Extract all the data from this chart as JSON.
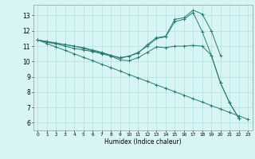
{
  "xlabel": "Humidex (Indice chaleur)",
  "background_color": "#d8f5f5",
  "grid_color": "#b0e0e0",
  "line_color": "#2a7a70",
  "xlim": [
    -0.5,
    23.5
  ],
  "ylim": [
    5.5,
    13.7
  ],
  "xticks": [
    0,
    1,
    2,
    3,
    4,
    5,
    6,
    7,
    8,
    9,
    10,
    11,
    12,
    13,
    14,
    15,
    16,
    17,
    18,
    19,
    20,
    21,
    22,
    23
  ],
  "yticks": [
    6,
    7,
    8,
    9,
    10,
    11,
    12,
    13
  ],
  "series": [
    {
      "x": [
        0,
        1,
        2,
        3,
        4,
        5,
        6,
        7,
        8,
        9,
        10,
        11,
        12,
        13,
        14,
        15,
        16,
        17,
        18,
        19,
        20
      ],
      "y": [
        11.4,
        11.3,
        11.2,
        11.1,
        11.0,
        10.9,
        10.75,
        10.6,
        10.4,
        10.2,
        10.35,
        10.55,
        11.1,
        11.55,
        11.65,
        12.75,
        12.85,
        13.35,
        13.1,
        12.0,
        10.4
      ]
    },
    {
      "x": [
        0,
        1,
        2,
        3,
        4,
        5,
        6,
        7,
        8,
        9,
        10,
        11,
        12,
        13,
        14,
        15,
        16,
        17,
        18,
        19,
        20,
        21,
        22
      ],
      "y": [
        11.4,
        11.3,
        11.2,
        11.1,
        11.0,
        10.85,
        10.7,
        10.55,
        10.4,
        10.25,
        10.35,
        10.6,
        11.0,
        11.5,
        11.6,
        12.6,
        12.75,
        13.2,
        11.95,
        10.4,
        8.6,
        7.3,
        6.3
      ]
    },
    {
      "x": [
        0,
        1,
        2,
        3,
        4,
        5,
        6,
        7,
        8,
        9,
        10,
        11,
        12,
        13,
        14,
        15,
        16,
        17,
        18,
        19,
        20,
        21,
        22
      ],
      "y": [
        11.4,
        11.25,
        11.15,
        11.0,
        10.85,
        10.75,
        10.65,
        10.5,
        10.35,
        10.1,
        10.05,
        10.25,
        10.6,
        10.95,
        10.9,
        11.0,
        11.0,
        11.05,
        11.0,
        10.4,
        8.6,
        7.3,
        6.3
      ]
    },
    {
      "x": [
        0,
        1,
        2,
        3,
        4,
        5,
        6,
        7,
        8,
        9,
        10,
        11,
        12,
        13,
        14,
        15,
        16,
        17,
        18,
        19,
        20,
        21,
        22,
        23
      ],
      "y": [
        11.4,
        11.17,
        10.95,
        10.72,
        10.5,
        10.27,
        10.05,
        9.82,
        9.6,
        9.37,
        9.15,
        8.92,
        8.7,
        8.47,
        8.25,
        8.02,
        7.8,
        7.57,
        7.35,
        7.12,
        6.9,
        6.67,
        6.45,
        6.22
      ]
    }
  ]
}
